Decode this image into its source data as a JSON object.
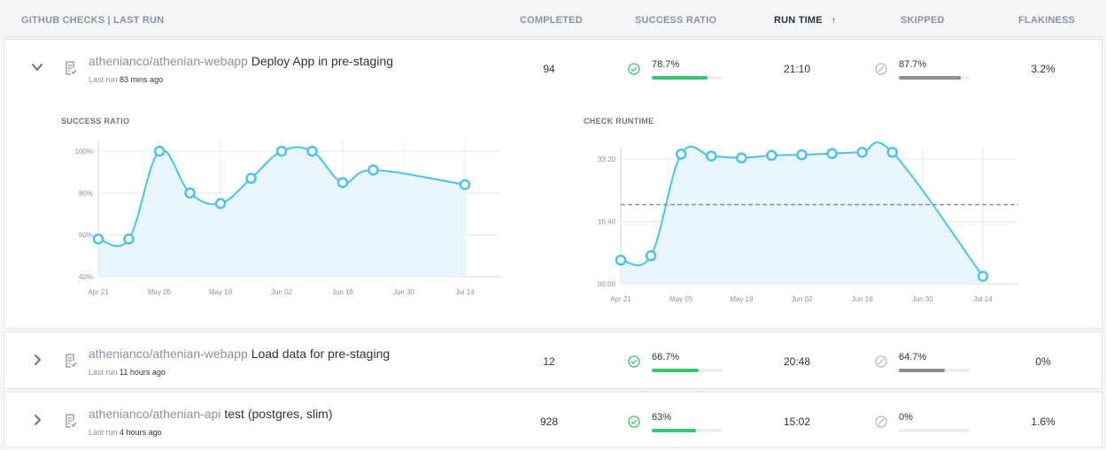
{
  "header": {
    "title": "GITHUB CHECKS | LAST RUN",
    "completed": "COMPLETED",
    "success_ratio": "SUCCESS RATIO",
    "run_time": "RUN TIME",
    "sort_arrow": "↑",
    "skipped": "SKIPPED",
    "flakiness": "FLAKINESS"
  },
  "rows": [
    {
      "expanded": true,
      "repo": "athenianco/athenian-webapp",
      "check": "Deploy App in pre-staging",
      "last_run_label": "Last run",
      "last_run_value": "83 mins ago",
      "completed": "94",
      "success_ratio": "78.7%",
      "success_ratio_fraction": 0.787,
      "run_time": "21:10",
      "skipped": "87.7%",
      "skipped_fraction": 0.877,
      "flakiness": "3.2%"
    },
    {
      "expanded": false,
      "repo": "athenianco/athenian-webapp",
      "check": "Load data for pre-staging",
      "last_run_label": "Last run",
      "last_run_value": "11 hours ago",
      "completed": "12",
      "success_ratio": "66.7%",
      "success_ratio_fraction": 0.667,
      "run_time": "20:48",
      "skipped": "64.7%",
      "skipped_fraction": 0.647,
      "flakiness": "0%"
    },
    {
      "expanded": false,
      "repo": "athenianco/athenian-api",
      "check": "test (postgres, slim)",
      "last_run_label": "Last run",
      "last_run_value": "4 hours ago",
      "completed": "928",
      "success_ratio": "63%",
      "success_ratio_fraction": 0.63,
      "run_time": "15:02",
      "skipped": "0%",
      "skipped_fraction": 0.0,
      "flakiness": "1.6%"
    }
  ],
  "colors": {
    "line": "#4ac3ea",
    "area": "#e8f5fc",
    "success": "#3ac66e",
    "skipped": "#8c8b9a",
    "average": "#8c8fa3"
  },
  "icons": {
    "expand": "chevron-down-icon",
    "collapse": "chevron-right-icon",
    "check": "check-circle-icon",
    "skipped": "skipped-circle-icon",
    "doc": "checklist-doc-icon"
  },
  "chart_data": [
    {
      "type": "area",
      "title": "SUCCESS RATIO",
      "x_ticks": [
        "Apr 21",
        "May 05",
        "May 19",
        "Jun 02",
        "Jun 16",
        "Jun 30",
        "Jul 14"
      ],
      "y_ticks": [
        "40%",
        "60%",
        "80%",
        "100%"
      ],
      "ylim": [
        40,
        100
      ],
      "grid": true,
      "series": [
        {
          "x": [
            "Apr 21",
            "Apr 28",
            "May 05",
            "May 12",
            "May 19",
            "May 26",
            "Jun 02",
            "Jun 09",
            "Jun 16",
            "Jun 23",
            "Jul 14"
          ],
          "values": [
            58,
            58,
            100,
            80,
            75,
            87,
            100,
            100,
            85,
            91,
            84
          ]
        }
      ]
    },
    {
      "type": "area",
      "title": "CHECK RUNTIME",
      "x_ticks": [
        "Apr 21",
        "May 05",
        "May 19",
        "Jun 02",
        "Jun 16",
        "Jun 30",
        "Jul 14"
      ],
      "y_ticks": [
        "00:00",
        "16:40",
        "33:20"
      ],
      "y_tick_seconds": [
        0,
        1000,
        2000
      ],
      "ylim_seconds": [
        0,
        2000
      ],
      "grid": true,
      "average_seconds": 1270,
      "series": [
        {
          "x": [
            "Apr 21",
            "Apr 28",
            "May 05",
            "May 12",
            "May 19",
            "May 26",
            "Jun 02",
            "Jun 09",
            "Jun 16",
            "Jun 23",
            "Jul 14"
          ],
          "values_seconds": [
            380,
            450,
            2080,
            2050,
            2020,
            2060,
            2070,
            2090,
            2110,
            2110,
            120
          ]
        }
      ]
    }
  ]
}
